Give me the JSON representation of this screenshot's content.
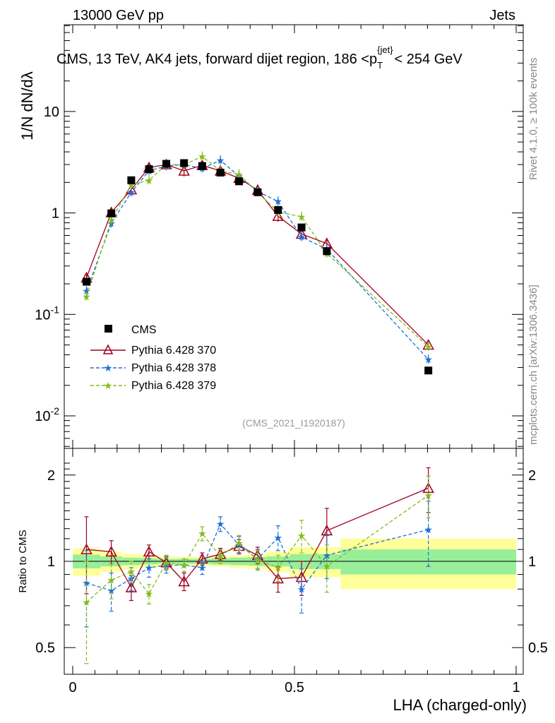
{
  "header": {
    "energy_label": "13000 GeV pp",
    "category_label": "Jets"
  },
  "side_labels": {
    "rivet": "Rivet 4.1.0, ≥ 100k events",
    "mcplots": "mcplots.cern.ch [arXiv:1306.3436]"
  },
  "chart_data": {
    "type": "scatter",
    "title": "CMS, 13 TeV, AK4 jets, forward dijet region, 186 <p_T^{jet}> < 254 GeV",
    "title_main": "CMS, 13 TeV, AK4 jets, forward dijet region, 186 <p",
    "title_sub": "T",
    "title_sup": "{jet}",
    "title_end": "< 254 GeV",
    "analysis_id": "(CMS_2021_I1920187)",
    "xlabel": "LHA (charged-only)",
    "ylabel_main": "1/N dN/dλ",
    "ylabel_ratio": "Ratio to CMS",
    "xlim": [
      0,
      1
    ],
    "ylim_main": [
      0.005,
      30
    ],
    "ylim_ratio": [
      0.4,
      2.3
    ],
    "yscale_main": "log",
    "yscale_ratio": "log",
    "x_ticks": [
      0,
      0.5,
      1
    ],
    "x_tick_labels": [
      "0",
      "0.5",
      "1"
    ],
    "y_main_ticks": [
      0.01,
      0.1,
      1,
      10
    ],
    "y_main_tick_labels": [
      "10^-2",
      "10^-1",
      "1",
      "10"
    ],
    "y_ratio_ticks": [
      0.5,
      1,
      2
    ],
    "y_ratio_tick_labels": [
      "0.5",
      "1",
      "2"
    ],
    "bin_edges": [
      0,
      0.0625,
      0.1111,
      0.1527,
      0.1909,
      0.2305,
      0.2708,
      0.3125,
      0.3542,
      0.3958,
      0.4375,
      0.4896,
      0.5417,
      0.6042,
      1.0
    ],
    "x": [
      0.031,
      0.087,
      0.132,
      0.172,
      0.211,
      0.251,
      0.292,
      0.333,
      0.375,
      0.417,
      0.463,
      0.516,
      0.573,
      0.802
    ],
    "cms": {
      "name": "CMS",
      "values": [
        0.21,
        0.99,
        2.1,
        2.7,
        3.05,
        3.1,
        2.9,
        2.5,
        2.05,
        1.6,
        1.07,
        0.72,
        0.42,
        0.028
      ]
    },
    "cms_band_inner": [
      0.055,
      0.04,
      0.03,
      0.025,
      0.02,
      0.02,
      0.02,
      0.025,
      0.03,
      0.035,
      0.04,
      0.06,
      0.06,
      0.1
    ],
    "cms_band_outer": [
      0.11,
      0.08,
      0.06,
      0.05,
      0.04,
      0.035,
      0.035,
      0.04,
      0.05,
      0.06,
      0.08,
      0.12,
      0.12,
      0.2
    ],
    "series": [
      {
        "name": "Pythia 6.428 370",
        "color": "#a0001e",
        "marker": "triangle",
        "dash": "",
        "values": [
          0.23,
          1.01,
          1.7,
          2.8,
          3.0,
          2.6,
          2.95,
          2.6,
          2.2,
          1.68,
          0.93,
          0.62,
          0.5,
          0.05
        ],
        "ratio": [
          1.1,
          1.08,
          0.81,
          1.08,
          0.99,
          0.85,
          1.02,
          1.06,
          1.13,
          1.05,
          0.87,
          0.88,
          1.28,
          1.8
        ],
        "ratio_err": [
          0.33,
          0.1,
          0.08,
          0.06,
          0.05,
          0.06,
          0.05,
          0.05,
          0.06,
          0.07,
          0.09,
          0.12,
          0.25,
          0.32
        ]
      },
      {
        "name": "Pythia 6.428 378",
        "color": "#1a6fd9",
        "marker": "star",
        "dash": "5,3",
        "values": [
          0.17,
          0.79,
          1.6,
          2.6,
          2.9,
          3.0,
          2.75,
          3.3,
          2.3,
          1.63,
          1.3,
          0.58,
          0.44,
          0.036
        ],
        "ratio": [
          0.84,
          0.79,
          0.87,
          0.95,
          0.97,
          0.97,
          0.95,
          1.35,
          1.14,
          1.02,
          1.21,
          0.8,
          1.05,
          1.29
        ],
        "ratio_err": [
          0.25,
          0.12,
          0.08,
          0.07,
          0.06,
          0.05,
          0.05,
          0.08,
          0.08,
          0.08,
          0.12,
          0.14,
          0.18,
          0.33
        ]
      },
      {
        "name": "Pythia 6.428 379",
        "color": "#82bc1a",
        "marker": "star",
        "dash": "5,3",
        "values": [
          0.15,
          0.85,
          1.9,
          2.1,
          3.0,
          3.0,
          3.6,
          2.6,
          2.4,
          1.6,
          1.02,
          0.92,
          0.4,
          0.048
        ],
        "ratio": [
          0.72,
          0.86,
          0.92,
          0.77,
          0.99,
          0.97,
          1.25,
          1.04,
          1.16,
          1.01,
          0.95,
          1.23,
          0.96,
          1.7
        ],
        "ratio_err": [
          0.28,
          0.12,
          0.08,
          0.06,
          0.06,
          0.05,
          0.07,
          0.06,
          0.07,
          0.08,
          0.1,
          0.16,
          0.18,
          0.28
        ]
      }
    ]
  }
}
